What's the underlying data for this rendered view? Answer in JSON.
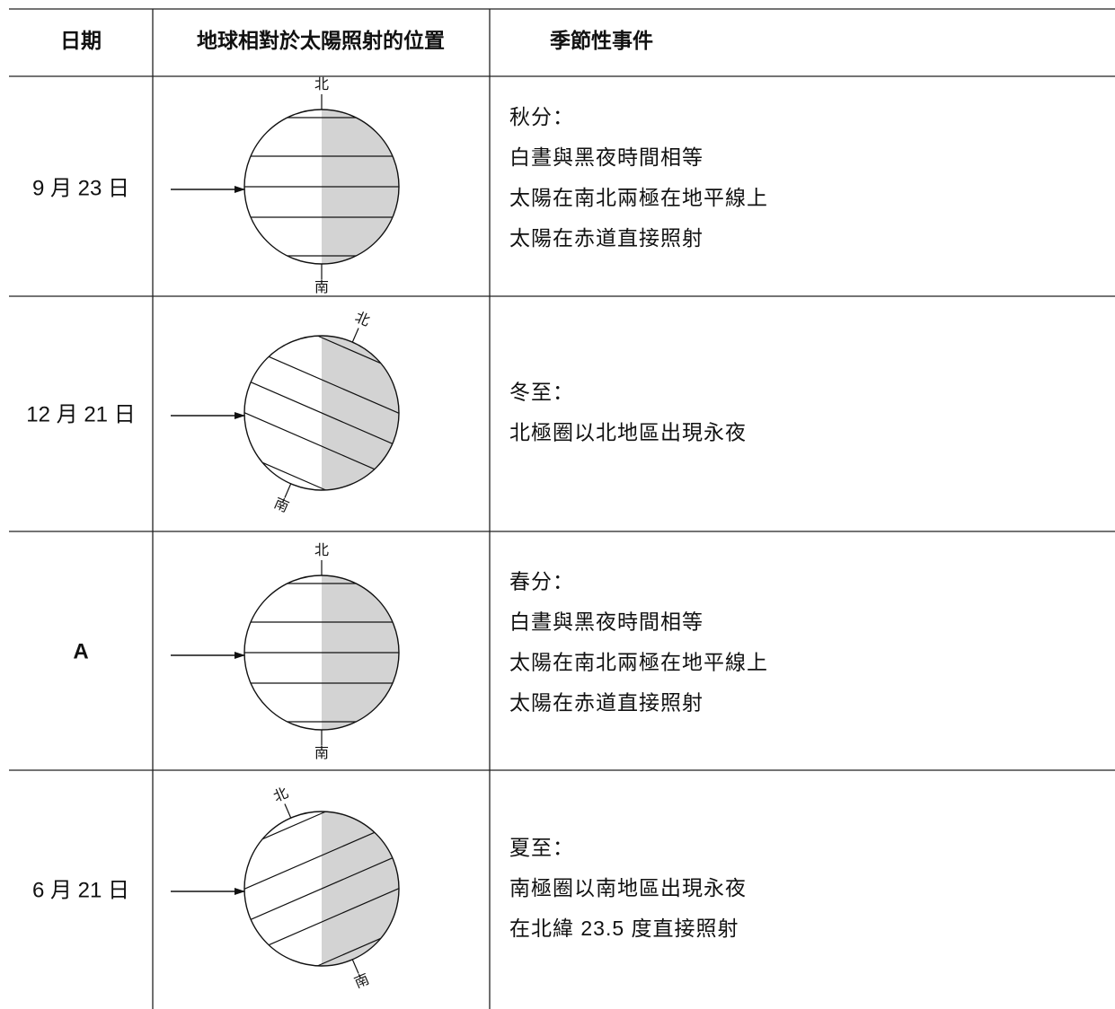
{
  "table": {
    "header": [
      "日期",
      "地球相對於太陽照射的位置",
      "季節性事件"
    ],
    "rows": [
      {
        "date": "9 月 23 日",
        "north": "北",
        "south": "南",
        "events": [
          "秋分：",
          "白晝與黑夜時間相等",
          "太陽在南北兩極在地平線上",
          "太陽在赤道直接照射"
        ]
      },
      {
        "date": "12 月 21 日",
        "north": "北",
        "south": "南",
        "events": [
          "冬至：",
          "北極圈以北地區出現永夜"
        ]
      },
      {
        "date": "A",
        "north": "北",
        "south": "南",
        "events": [
          "春分：",
          "白晝與黑夜時間相等",
          "太陽在南北兩極在地平線上",
          "太陽在赤道直接照射"
        ]
      },
      {
        "date": "6 月 21 日",
        "north": "北",
        "south": "南",
        "events": [
          "夏至：",
          "南極圈以南地區出現永夜",
          "在北緯 23.5 度直接照射"
        ]
      }
    ]
  }
}
